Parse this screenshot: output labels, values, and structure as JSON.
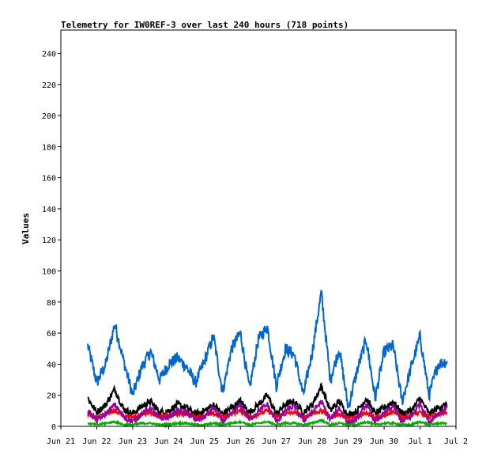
{
  "chart_data": {
    "type": "line",
    "title": "Telemetry for IW0REF-3 over last 240 hours (718 points)",
    "xlabel": "",
    "ylabel": "Values",
    "ylim": [
      0,
      255
    ],
    "xlim": [
      "2021-06-21",
      "2021-07-02"
    ],
    "y_ticks": [
      0,
      20,
      40,
      60,
      80,
      100,
      120,
      140,
      160,
      180,
      200,
      220,
      240
    ],
    "x_ticks": [
      {
        "date": "2021-06-21",
        "label": "Jun 21"
      },
      {
        "date": "2021-06-22",
        "label": "Jun 22"
      },
      {
        "date": "2021-06-23",
        "label": "Jun 23"
      },
      {
        "date": "2021-06-24",
        "label": "Jun 24"
      },
      {
        "date": "2021-06-25",
        "label": "Jun 25"
      },
      {
        "date": "2021-06-26",
        "label": "Jun 26"
      },
      {
        "date": "2021-06-27",
        "label": "Jun 27"
      },
      {
        "date": "2021-06-28",
        "label": "Jun 28"
      },
      {
        "date": "2021-06-29",
        "label": "Jun 29"
      },
      {
        "date": "2021-06-30",
        "label": "Jun 30"
      },
      {
        "date": "2021-07-01",
        "label": "Jul 1"
      },
      {
        "date": "2021-07-02",
        "label": "Jul 2"
      }
    ],
    "grid": false,
    "legend": "none",
    "series": [
      {
        "color": "#0066cc",
        "x": [
          "2021-06-21T18:00",
          "2021-06-22T00:00",
          "2021-06-22T06:00",
          "2021-06-22T12:00",
          "2021-06-22T18:00",
          "2021-06-23T00:00",
          "2021-06-23T06:00",
          "2021-06-23T12:00",
          "2021-06-23T18:00",
          "2021-06-24T00:00",
          "2021-06-24T06:00",
          "2021-06-24T12:00",
          "2021-06-24T18:00",
          "2021-06-25T00:00",
          "2021-06-25T06:00",
          "2021-06-25T12:00",
          "2021-06-25T18:00",
          "2021-06-26T00:00",
          "2021-06-26T06:00",
          "2021-06-26T12:00",
          "2021-06-26T18:00",
          "2021-06-27T00:00",
          "2021-06-27T06:00",
          "2021-06-27T12:00",
          "2021-06-27T18:00",
          "2021-06-28T00:00",
          "2021-06-28T06:00",
          "2021-06-28T12:00",
          "2021-06-28T18:00",
          "2021-06-29T00:00",
          "2021-06-29T06:00",
          "2021-06-29T12:00",
          "2021-06-29T18:00",
          "2021-06-30T00:00",
          "2021-06-30T06:00",
          "2021-06-30T12:00",
          "2021-06-30T18:00",
          "2021-07-01T00:00",
          "2021-07-01T06:00",
          "2021-07-01T12:00",
          "2021-07-01T18:00"
        ],
        "y": [
          52,
          28,
          40,
          66,
          42,
          20,
          38,
          48,
          30,
          40,
          44,
          38,
          28,
          42,
          58,
          22,
          50,
          60,
          24,
          56,
          64,
          26,
          50,
          46,
          20,
          48,
          86,
          30,
          50,
          12,
          36,
          56,
          18,
          48,
          52,
          16,
          38,
          58,
          20,
          40,
          42
        ]
      },
      {
        "color": "#000000",
        "x": [
          "2021-06-21T18:00",
          "2021-06-22T00:00",
          "2021-06-22T06:00",
          "2021-06-22T12:00",
          "2021-06-22T18:00",
          "2021-06-23T00:00",
          "2021-06-23T06:00",
          "2021-06-23T12:00",
          "2021-06-23T18:00",
          "2021-06-24T00:00",
          "2021-06-24T06:00",
          "2021-06-24T12:00",
          "2021-06-24T18:00",
          "2021-06-25T00:00",
          "2021-06-25T06:00",
          "2021-06-25T12:00",
          "2021-06-25T18:00",
          "2021-06-26T00:00",
          "2021-06-26T06:00",
          "2021-06-26T12:00",
          "2021-06-26T18:00",
          "2021-06-27T00:00",
          "2021-06-27T06:00",
          "2021-06-27T12:00",
          "2021-06-27T18:00",
          "2021-06-28T00:00",
          "2021-06-28T06:00",
          "2021-06-28T12:00",
          "2021-06-28T18:00",
          "2021-06-29T00:00",
          "2021-06-29T06:00",
          "2021-06-29T12:00",
          "2021-06-29T18:00",
          "2021-06-30T00:00",
          "2021-06-30T06:00",
          "2021-06-30T12:00",
          "2021-06-30T18:00",
          "2021-07-01T00:00",
          "2021-07-01T06:00",
          "2021-07-01T12:00",
          "2021-07-01T18:00"
        ],
        "y": [
          18,
          9,
          14,
          24,
          11,
          8,
          13,
          16,
          9,
          10,
          14,
          12,
          8,
          10,
          14,
          8,
          12,
          16,
          9,
          14,
          20,
          8,
          14,
          16,
          9,
          14,
          26,
          10,
          16,
          7,
          10,
          18,
          8,
          12,
          16,
          8,
          10,
          18,
          8,
          12,
          14
        ]
      },
      {
        "color": "#ff0000",
        "x": [
          "2021-06-21T18:00",
          "2021-06-22T00:00",
          "2021-06-22T06:00",
          "2021-06-22T12:00",
          "2021-06-22T18:00",
          "2021-06-23T00:00",
          "2021-06-23T06:00",
          "2021-06-23T12:00",
          "2021-06-23T18:00",
          "2021-06-24T00:00",
          "2021-06-24T06:00",
          "2021-06-24T12:00",
          "2021-06-24T18:00",
          "2021-06-25T00:00",
          "2021-06-25T06:00",
          "2021-06-25T12:00",
          "2021-06-25T18:00",
          "2021-06-26T00:00",
          "2021-06-26T06:00",
          "2021-06-26T12:00",
          "2021-06-26T18:00",
          "2021-06-27T00:00",
          "2021-06-27T06:00",
          "2021-06-27T12:00",
          "2021-06-27T18:00",
          "2021-06-28T00:00",
          "2021-06-28T06:00",
          "2021-06-28T12:00",
          "2021-06-28T18:00",
          "2021-06-29T00:00",
          "2021-06-29T06:00",
          "2021-06-29T12:00",
          "2021-06-29T18:00",
          "2021-06-30T00:00",
          "2021-06-30T06:00",
          "2021-06-30T12:00",
          "2021-06-30T18:00",
          "2021-07-01T00:00",
          "2021-07-01T06:00",
          "2021-07-01T12:00",
          "2021-07-01T18:00"
        ],
        "y": [
          8,
          6,
          8,
          10,
          7,
          6,
          8,
          9,
          6,
          7,
          8,
          8,
          6,
          7,
          8,
          6,
          8,
          10,
          6,
          8,
          10,
          6,
          8,
          9,
          6,
          8,
          10,
          6,
          8,
          5,
          6,
          9,
          6,
          7,
          9,
          6,
          7,
          9,
          6,
          8,
          9
        ]
      },
      {
        "color": "#990099",
        "x": [
          "2021-06-21T18:00",
          "2021-06-22T00:00",
          "2021-06-22T06:00",
          "2021-06-22T12:00",
          "2021-06-22T18:00",
          "2021-06-23T00:00",
          "2021-06-23T06:00",
          "2021-06-23T12:00",
          "2021-06-23T18:00",
          "2021-06-24T00:00",
          "2021-06-24T06:00",
          "2021-06-24T12:00",
          "2021-06-24T18:00",
          "2021-06-25T00:00",
          "2021-06-25T06:00",
          "2021-06-25T12:00",
          "2021-06-25T18:00",
          "2021-06-26T00:00",
          "2021-06-26T06:00",
          "2021-06-26T12:00",
          "2021-06-26T18:00",
          "2021-06-27T00:00",
          "2021-06-27T06:00",
          "2021-06-27T12:00",
          "2021-06-27T18:00",
          "2021-06-28T00:00",
          "2021-06-28T06:00",
          "2021-06-28T12:00",
          "2021-06-28T18:00",
          "2021-06-29T00:00",
          "2021-06-29T06:00",
          "2021-06-29T12:00",
          "2021-06-29T18:00",
          "2021-06-30T00:00",
          "2021-06-30T06:00",
          "2021-06-30T12:00",
          "2021-06-30T18:00",
          "2021-07-01T00:00",
          "2021-07-01T06:00",
          "2021-07-01T12:00",
          "2021-07-01T18:00"
        ],
        "y": [
          10,
          4,
          8,
          14,
          6,
          3,
          8,
          12,
          5,
          6,
          10,
          9,
          4,
          6,
          12,
          3,
          8,
          14,
          4,
          10,
          14,
          3,
          10,
          13,
          4,
          9,
          16,
          4,
          12,
          2,
          5,
          14,
          3,
          8,
          13,
          3,
          6,
          15,
          3,
          8,
          12
        ]
      },
      {
        "color": "#00aa00",
        "x": [
          "2021-06-21T18:00",
          "2021-06-22T00:00",
          "2021-06-22T06:00",
          "2021-06-22T12:00",
          "2021-06-22T18:00",
          "2021-06-23T00:00",
          "2021-06-23T06:00",
          "2021-06-23T12:00",
          "2021-06-23T18:00",
          "2021-06-24T00:00",
          "2021-06-24T06:00",
          "2021-06-24T12:00",
          "2021-06-24T18:00",
          "2021-06-25T00:00",
          "2021-06-25T06:00",
          "2021-06-25T12:00",
          "2021-06-25T18:00",
          "2021-06-26T00:00",
          "2021-06-26T06:00",
          "2021-06-26T12:00",
          "2021-06-26T18:00",
          "2021-06-27T00:00",
          "2021-06-27T06:00",
          "2021-06-27T12:00",
          "2021-06-27T18:00",
          "2021-06-28T00:00",
          "2021-06-28T06:00",
          "2021-06-28T12:00",
          "2021-06-28T18:00",
          "2021-06-29T00:00",
          "2021-06-29T06:00",
          "2021-06-29T12:00",
          "2021-06-29T18:00",
          "2021-06-30T00:00",
          "2021-06-30T06:00",
          "2021-06-30T12:00",
          "2021-06-30T18:00",
          "2021-07-01T00:00",
          "2021-07-01T06:00",
          "2021-07-01T12:00",
          "2021-07-01T18:00"
        ],
        "y": [
          2,
          1,
          2,
          3,
          1,
          1,
          2,
          2,
          1,
          1,
          2,
          2,
          1,
          1,
          2,
          1,
          2,
          3,
          1,
          2,
          3,
          1,
          2,
          2,
          1,
          2,
          4,
          1,
          2,
          1,
          1,
          3,
          1,
          2,
          2,
          1,
          1,
          3,
          1,
          2,
          2
        ]
      }
    ]
  }
}
